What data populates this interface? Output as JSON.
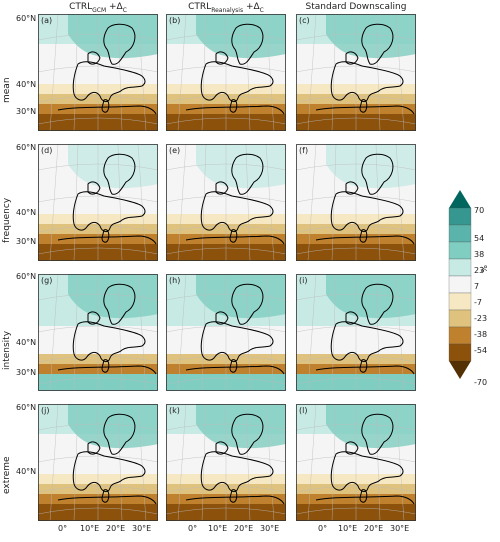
{
  "columns": [
    {
      "pre": "CTRL",
      "sub": "GCM",
      "post": " +Δ",
      "csub": "C"
    },
    {
      "pre": "CTRL",
      "sub": "Reanalysis",
      "post": " +Δ",
      "csub": "C"
    },
    {
      "pre": "Standard Downscaling",
      "sub": "",
      "post": "",
      "csub": ""
    }
  ],
  "rows": [
    "mean",
    "frequency",
    "intensity",
    "extreme"
  ],
  "panel_labels": [
    "(a)",
    "(b)",
    "(c)",
    "(d)",
    "(e)",
    "(f)",
    "(g)",
    "(h)",
    "(i)",
    "(j)",
    "(k)",
    "(l)"
  ],
  "lat_labels": [
    "60°N",
    "40°N",
    "30°N"
  ],
  "lat_labels_short": [
    "60°N",
    "40°N",
    "30°N"
  ],
  "lon_labels": [
    "0°",
    "10°E",
    "20°E",
    "30°E"
  ],
  "colorbar": {
    "unit": "%",
    "ticks": [
      "70",
      "54",
      "38",
      "23",
      "7",
      "-7",
      "-23",
      "-38",
      "-54",
      "-70"
    ],
    "colors": [
      "#01665e",
      "#35978f",
      "#5ab4ac",
      "#80cdc1",
      "#c7eae5",
      "#f5f5f5",
      "#f6e8c3",
      "#dfc27d",
      "#bf812d",
      "#8c510a",
      "#543005"
    ]
  }
}
